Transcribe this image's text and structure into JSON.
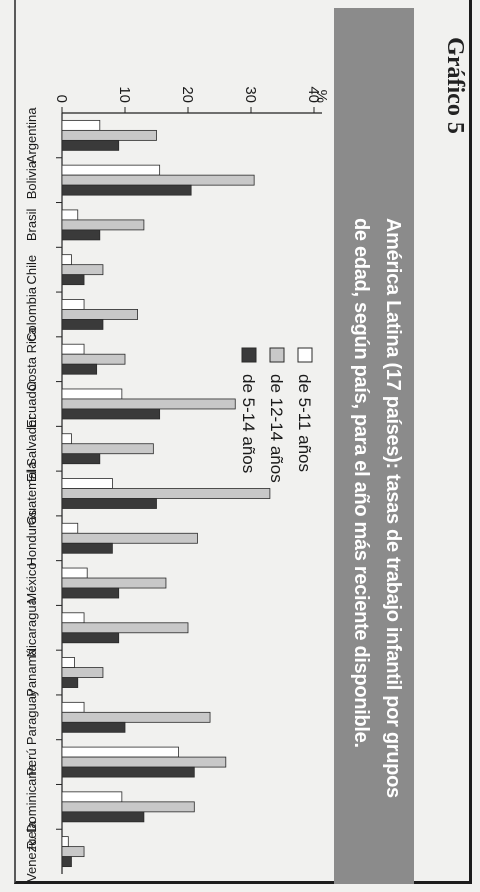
{
  "page_heading": "Gráfico 5",
  "title_line1": "América Latina (17 países): tasas de trabajo infantil por grupos",
  "title_line2": "de edad, según país, para el año más reciente disponible.",
  "chart_data": {
    "type": "bar",
    "orientation": "vertical",
    "title": "América Latina (17 países): tasas de trabajo infantil por grupos de edad, según país, para el año más reciente disponible.",
    "ylabel": "%",
    "ylim": [
      0,
      40
    ],
    "yticks": [
      0,
      10,
      20,
      30,
      40
    ],
    "grid": false,
    "legend_position": "top-right",
    "categories": [
      "Argentina",
      "Bolivia",
      "Brasil",
      "Chile",
      "Colombia",
      "Costa Rica",
      "Ecuador",
      "El Salvador",
      "Guatemala",
      "Honduras",
      "México",
      "Nicaragua",
      "Panamá",
      "Paraguay",
      "Perú",
      "R. Dominicana",
      "Venezuela"
    ],
    "series": [
      {
        "name": "de 5-11 años",
        "color": "#ffffff",
        "values": [
          6,
          15.5,
          2.5,
          1.5,
          3.5,
          3.5,
          9.5,
          1.5,
          8,
          2.5,
          4,
          3.5,
          2,
          3.5,
          18.5,
          9.5,
          1
        ]
      },
      {
        "name": "de 12-14 años",
        "color": "#c8c8c8",
        "values": [
          15,
          30.5,
          13,
          6.5,
          12,
          10,
          27.5,
          14.5,
          33,
          21.5,
          16.5,
          20,
          6.5,
          23.5,
          26,
          21,
          3.5
        ]
      },
      {
        "name": "de 5-14 años",
        "color": "#3a3a3a",
        "values": [
          9,
          20.5,
          6,
          3.5,
          6.5,
          5.5,
          15.5,
          6,
          15,
          8,
          9,
          9,
          2.5,
          10,
          21,
          13,
          1.5
        ]
      }
    ]
  }
}
